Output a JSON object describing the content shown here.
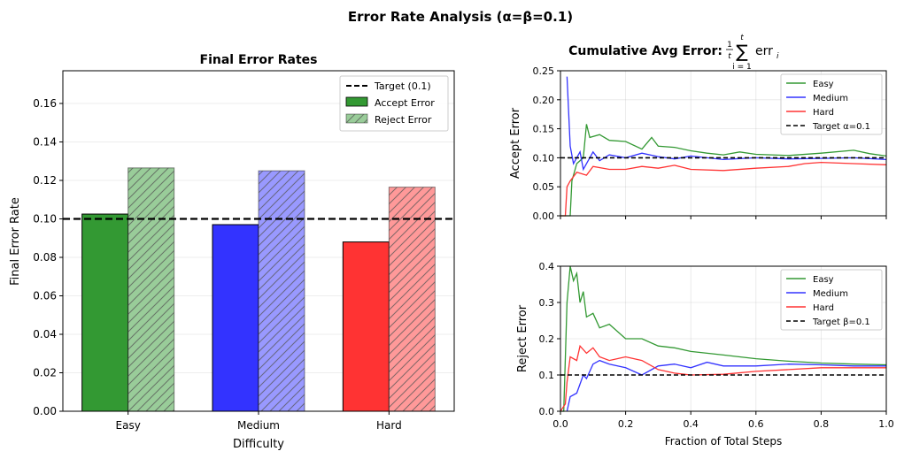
{
  "suptitle": "Error Rate Analysis (α=β=0.1)",
  "chart_data": [
    {
      "type": "bar",
      "title": "Final Error Rates",
      "xlabel": "Difficulty",
      "ylabel": "Final Error Rate",
      "categories": [
        "Easy",
        "Medium",
        "Hard"
      ],
      "ylim": [
        0,
        0.177
      ],
      "yticks": [
        "0.00",
        "0.02",
        "0.04",
        "0.06",
        "0.08",
        "0.10",
        "0.12",
        "0.14",
        "0.16"
      ],
      "grid": "y",
      "legend_position": "top-right",
      "target": {
        "name": "Target (0.1)",
        "value": 0.1
      },
      "series": [
        {
          "name": "Accept Error",
          "values": [
            0.1025,
            0.097,
            0.088
          ],
          "colors": [
            "#339933",
            "#3333ff",
            "#ff3333"
          ],
          "style": "solid"
        },
        {
          "name": "Reject Error",
          "values": [
            0.1265,
            0.125,
            0.1165
          ],
          "colors": [
            "#99cc99",
            "#9999ff",
            "#ff9999"
          ],
          "style": "hatched"
        }
      ]
    },
    {
      "type": "line",
      "title_prefix": "Cumulative Avg Error: ",
      "title_formula": {
        "frac_num": "1",
        "frac_den": "t",
        "sum_top": "t",
        "sum_bottom": "i = 1",
        "term": "err",
        "term_sub": "i"
      },
      "ylabel": "Accept Error",
      "ylim": [
        0,
        0.25
      ],
      "yticks": [
        "0.00",
        "0.05",
        "0.10",
        "0.15",
        "0.20",
        "0.25"
      ],
      "xlim": [
        0,
        1
      ],
      "grid": "both",
      "legend_position": "top-right",
      "target": {
        "name": "Target α=0.1",
        "value": 0.1
      },
      "series": [
        {
          "name": "Easy",
          "color": "#339933",
          "points": [
            [
              0.0,
              0.0
            ],
            [
              0.03,
              0.0
            ],
            [
              0.035,
              0.06
            ],
            [
              0.05,
              0.09
            ],
            [
              0.07,
              0.1
            ],
            [
              0.08,
              0.158
            ],
            [
              0.09,
              0.135
            ],
            [
              0.12,
              0.14
            ],
            [
              0.15,
              0.13
            ],
            [
              0.2,
              0.128
            ],
            [
              0.25,
              0.115
            ],
            [
              0.28,
              0.135
            ],
            [
              0.3,
              0.12
            ],
            [
              0.35,
              0.118
            ],
            [
              0.4,
              0.112
            ],
            [
              0.45,
              0.108
            ],
            [
              0.5,
              0.105
            ],
            [
              0.55,
              0.11
            ],
            [
              0.6,
              0.106
            ],
            [
              0.7,
              0.104
            ],
            [
              0.8,
              0.108
            ],
            [
              0.9,
              0.113
            ],
            [
              0.95,
              0.107
            ],
            [
              1.0,
              0.103
            ]
          ]
        },
        {
          "name": "Medium",
          "color": "#3333ff",
          "points": [
            [
              0.02,
              0.24
            ],
            [
              0.03,
              0.12
            ],
            [
              0.04,
              0.09
            ],
            [
              0.06,
              0.11
            ],
            [
              0.07,
              0.08
            ],
            [
              0.1,
              0.11
            ],
            [
              0.12,
              0.095
            ],
            [
              0.15,
              0.105
            ],
            [
              0.2,
              0.1
            ],
            [
              0.25,
              0.108
            ],
            [
              0.3,
              0.102
            ],
            [
              0.35,
              0.098
            ],
            [
              0.4,
              0.103
            ],
            [
              0.5,
              0.097
            ],
            [
              0.6,
              0.1
            ],
            [
              0.7,
              0.098
            ],
            [
              0.8,
              0.099
            ],
            [
              0.9,
              0.1
            ],
            [
              1.0,
              0.097
            ]
          ]
        },
        {
          "name": "Hard",
          "color": "#ff3333",
          "points": [
            [
              0.0,
              0.0
            ],
            [
              0.015,
              0.0
            ],
            [
              0.02,
              0.05
            ],
            [
              0.03,
              0.06
            ],
            [
              0.05,
              0.075
            ],
            [
              0.08,
              0.07
            ],
            [
              0.1,
              0.085
            ],
            [
              0.15,
              0.08
            ],
            [
              0.2,
              0.08
            ],
            [
              0.25,
              0.085
            ],
            [
              0.3,
              0.082
            ],
            [
              0.35,
              0.087
            ],
            [
              0.4,
              0.08
            ],
            [
              0.5,
              0.078
            ],
            [
              0.6,
              0.082
            ],
            [
              0.7,
              0.085
            ],
            [
              0.75,
              0.09
            ],
            [
              0.8,
              0.092
            ],
            [
              0.9,
              0.09
            ],
            [
              1.0,
              0.088
            ]
          ]
        }
      ]
    },
    {
      "type": "line",
      "xlabel": "Fraction of Total Steps",
      "ylabel": "Reject Error",
      "ylim": [
        0,
        0.4
      ],
      "yticks": [
        "0.0",
        "0.1",
        "0.2",
        "0.3",
        "0.4"
      ],
      "xlim": [
        0,
        1
      ],
      "xticks": [
        "0.0",
        "0.2",
        "0.4",
        "0.6",
        "0.8",
        "1.0"
      ],
      "grid": "both",
      "legend_position": "top-right",
      "target": {
        "name": "Target β=0.1",
        "value": 0.1
      },
      "series": [
        {
          "name": "Easy",
          "color": "#339933",
          "points": [
            [
              0.0,
              0.0
            ],
            [
              0.01,
              0.0
            ],
            [
              0.02,
              0.3
            ],
            [
              0.03,
              0.4
            ],
            [
              0.04,
              0.36
            ],
            [
              0.05,
              0.38
            ],
            [
              0.06,
              0.3
            ],
            [
              0.07,
              0.33
            ],
            [
              0.08,
              0.26
            ],
            [
              0.1,
              0.27
            ],
            [
              0.12,
              0.23
            ],
            [
              0.15,
              0.24
            ],
            [
              0.2,
              0.2
            ],
            [
              0.25,
              0.2
            ],
            [
              0.3,
              0.18
            ],
            [
              0.35,
              0.175
            ],
            [
              0.4,
              0.165
            ],
            [
              0.5,
              0.155
            ],
            [
              0.6,
              0.145
            ],
            [
              0.7,
              0.138
            ],
            [
              0.8,
              0.133
            ],
            [
              0.9,
              0.13
            ],
            [
              1.0,
              0.128
            ]
          ]
        },
        {
          "name": "Medium",
          "color": "#3333ff",
          "points": [
            [
              0.02,
              0.0
            ],
            [
              0.03,
              0.04
            ],
            [
              0.05,
              0.05
            ],
            [
              0.07,
              0.1
            ],
            [
              0.08,
              0.09
            ],
            [
              0.1,
              0.13
            ],
            [
              0.12,
              0.14
            ],
            [
              0.15,
              0.13
            ],
            [
              0.2,
              0.12
            ],
            [
              0.25,
              0.1
            ],
            [
              0.3,
              0.125
            ],
            [
              0.35,
              0.13
            ],
            [
              0.4,
              0.12
            ],
            [
              0.45,
              0.135
            ],
            [
              0.5,
              0.125
            ],
            [
              0.6,
              0.125
            ],
            [
              0.7,
              0.13
            ],
            [
              0.8,
              0.128
            ],
            [
              0.9,
              0.125
            ],
            [
              1.0,
              0.125
            ]
          ]
        },
        {
          "name": "Hard",
          "color": "#ff3333",
          "points": [
            [
              0.0,
              0.0
            ],
            [
              0.015,
              0.02
            ],
            [
              0.02,
              0.08
            ],
            [
              0.03,
              0.15
            ],
            [
              0.05,
              0.14
            ],
            [
              0.06,
              0.18
            ],
            [
              0.08,
              0.16
            ],
            [
              0.1,
              0.175
            ],
            [
              0.12,
              0.15
            ],
            [
              0.15,
              0.14
            ],
            [
              0.2,
              0.15
            ],
            [
              0.25,
              0.14
            ],
            [
              0.3,
              0.115
            ],
            [
              0.35,
              0.105
            ],
            [
              0.4,
              0.1
            ],
            [
              0.5,
              0.102
            ],
            [
              0.6,
              0.11
            ],
            [
              0.7,
              0.115
            ],
            [
              0.8,
              0.12
            ],
            [
              0.9,
              0.12
            ],
            [
              1.0,
              0.12
            ]
          ]
        }
      ]
    }
  ]
}
